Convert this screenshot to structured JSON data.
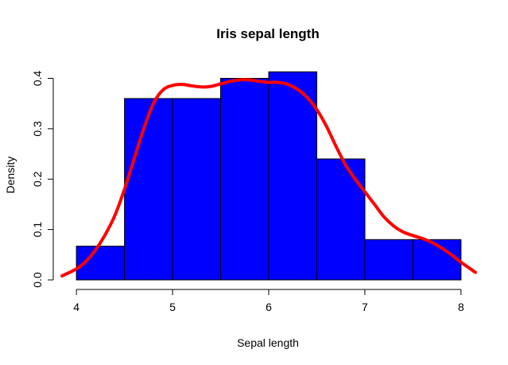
{
  "chart_data": {
    "type": "histogram",
    "title": "Iris sepal length",
    "xlabel": "Sepal length",
    "ylabel": "Density",
    "xlim": [
      3.85,
      8.15
    ],
    "ylim": [
      0,
      0.415
    ],
    "x_ticks": [
      4,
      5,
      6,
      7,
      8
    ],
    "y_ticks": [
      0.0,
      0.1,
      0.2,
      0.3,
      0.4
    ],
    "y_tick_labels": [
      "0.0",
      "0.1",
      "0.2",
      "0.3",
      "0.4"
    ],
    "bins": [
      {
        "start": 4.0,
        "end": 4.5,
        "density": 0.067
      },
      {
        "start": 4.5,
        "end": 5.0,
        "density": 0.36
      },
      {
        "start": 5.0,
        "end": 5.5,
        "density": 0.36
      },
      {
        "start": 5.5,
        "end": 6.0,
        "density": 0.4
      },
      {
        "start": 6.0,
        "end": 6.5,
        "density": 0.413
      },
      {
        "start": 6.5,
        "end": 7.0,
        "density": 0.24
      },
      {
        "start": 7.0,
        "end": 7.5,
        "density": 0.08
      },
      {
        "start": 7.5,
        "end": 8.0,
        "density": 0.08
      }
    ],
    "density_curve": {
      "x": [
        3.85,
        4.0,
        4.1,
        4.2,
        4.3,
        4.4,
        4.5,
        4.6,
        4.7,
        4.8,
        4.9,
        5.0,
        5.1,
        5.2,
        5.3,
        5.4,
        5.5,
        5.6,
        5.7,
        5.8,
        5.9,
        6.0,
        6.1,
        6.2,
        6.3,
        6.4,
        6.5,
        6.6,
        6.7,
        6.8,
        6.9,
        7.0,
        7.1,
        7.2,
        7.3,
        7.4,
        7.5,
        7.6,
        7.7,
        7.8,
        7.9,
        8.0,
        8.15
      ],
      "y": [
        0.008,
        0.022,
        0.037,
        0.06,
        0.09,
        0.128,
        0.18,
        0.24,
        0.3,
        0.35,
        0.377,
        0.386,
        0.388,
        0.385,
        0.383,
        0.384,
        0.389,
        0.394,
        0.397,
        0.397,
        0.394,
        0.392,
        0.392,
        0.388,
        0.378,
        0.362,
        0.338,
        0.305,
        0.265,
        0.228,
        0.2,
        0.175,
        0.15,
        0.125,
        0.107,
        0.095,
        0.088,
        0.082,
        0.074,
        0.063,
        0.05,
        0.035,
        0.015
      ]
    },
    "bar_color": "#0000ff",
    "curve_color": "#ff0000",
    "grid": false,
    "legend": "none"
  }
}
